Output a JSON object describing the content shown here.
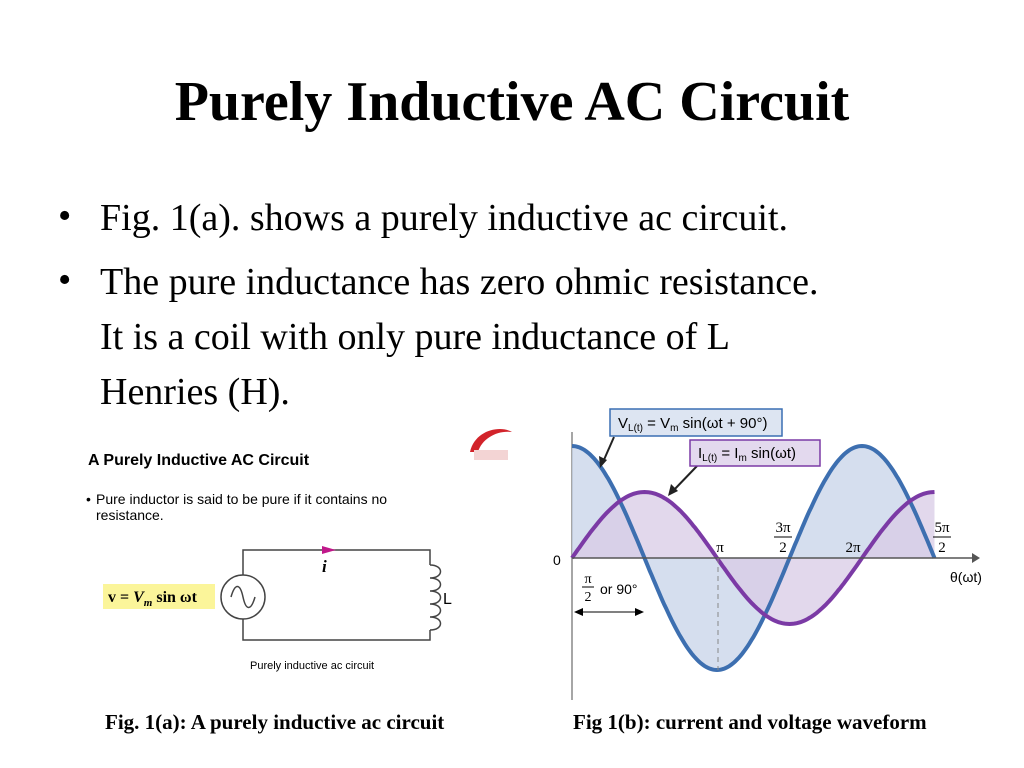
{
  "title": "Purely Inductive AC Circuit",
  "bullets": [
    {
      "lines": [
        "Fig. 1(a). shows a purely inductive ac circuit."
      ]
    },
    {
      "lines": [
        "The pure inductance has zero ohmic resistance.",
        "It is a coil with only pure inductance of L",
        "Henries (H)."
      ]
    }
  ],
  "figure_a": {
    "heading": "A Purely Inductive AC Circuit",
    "note": [
      "Pure inductor is said to be pure if it contains no",
      "resistance."
    ],
    "source": [
      "v = ",
      "V",
      "m",
      " sin ωt"
    ],
    "current": "i",
    "inductor": "L",
    "label": "Purely inductive ac circuit",
    "caption": "Fig. 1(a): A purely inductive ac circuit"
  },
  "figure_b": {
    "voltage": [
      "V",
      "L(t)",
      " = V",
      "m",
      " sin(ωt + 90°)"
    ],
    "current": [
      "I",
      "L(t)",
      " = I",
      "m",
      " sin(ωt)"
    ],
    "origin": "0",
    "ticks": [
      {
        "label": "π"
      },
      {
        "num": "3π",
        "den": "2"
      },
      {
        "label": "2π"
      },
      {
        "num": "5π",
        "den": "2"
      }
    ],
    "axis_label": "θ(ωt)",
    "shift": {
      "num": "π",
      "den": "2",
      "text": "or 90°"
    },
    "caption": "Fig 1(b): current and voltage waveform"
  }
}
